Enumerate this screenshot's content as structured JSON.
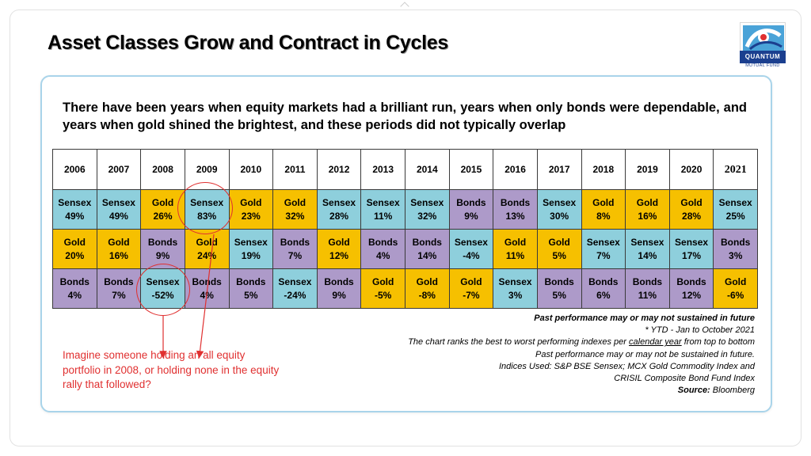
{
  "title": "Asset Classes Grow and Contract in Cycles",
  "logo": {
    "name": "QUANTUM",
    "sub": "MUTUAL FUND"
  },
  "intro": "There have been years when equity markets had a brilliant run, years when only bonds were dependable, and years when gold shined the brightest, and these periods did not typically overlap",
  "years": [
    "2006",
    "2007",
    "2008",
    "2009",
    "2010",
    "2011",
    "2012",
    "2013",
    "2014",
    "2015",
    "2016",
    "2017",
    "2018",
    "2019",
    "2020",
    "2021"
  ],
  "rows": [
    [
      {
        "name": "Sensex",
        "val": "49%"
      },
      {
        "name": "Sensex",
        "val": "49%"
      },
      {
        "name": "Gold",
        "val": "26%"
      },
      {
        "name": "Sensex",
        "val": "83%"
      },
      {
        "name": "Gold",
        "val": "23%"
      },
      {
        "name": "Gold",
        "val": "32%"
      },
      {
        "name": "Sensex",
        "val": "28%"
      },
      {
        "name": "Sensex",
        "val": "11%"
      },
      {
        "name": "Sensex",
        "val": "32%"
      },
      {
        "name": "Bonds",
        "val": "9%"
      },
      {
        "name": "Bonds",
        "val": "13%"
      },
      {
        "name": "Sensex",
        "val": "30%"
      },
      {
        "name": "Gold",
        "val": "8%"
      },
      {
        "name": "Gold",
        "val": "16%"
      },
      {
        "name": "Gold",
        "val": "28%"
      },
      {
        "name": "Sensex",
        "val": "25%"
      }
    ],
    [
      {
        "name": "Gold",
        "val": "20%"
      },
      {
        "name": "Gold",
        "val": "16%"
      },
      {
        "name": "Bonds",
        "val": "9%"
      },
      {
        "name": "Gold",
        "val": "24%"
      },
      {
        "name": "Sensex",
        "val": "19%"
      },
      {
        "name": "Bonds",
        "val": "7%"
      },
      {
        "name": "Gold",
        "val": "12%"
      },
      {
        "name": "Bonds",
        "val": "4%"
      },
      {
        "name": "Bonds",
        "val": "14%"
      },
      {
        "name": "Sensex",
        "val": "-4%"
      },
      {
        "name": "Gold",
        "val": "11%"
      },
      {
        "name": "Gold",
        "val": "5%"
      },
      {
        "name": "Sensex",
        "val": "7%"
      },
      {
        "name": "Sensex",
        "val": "14%"
      },
      {
        "name": "Sensex",
        "val": "17%"
      },
      {
        "name": "Bonds",
        "val": "3%"
      }
    ],
    [
      {
        "name": "Bonds",
        "val": "4%"
      },
      {
        "name": "Bonds",
        "val": "7%"
      },
      {
        "name": "Sensex",
        "val": "-52%"
      },
      {
        "name": "Bonds",
        "val": "4%"
      },
      {
        "name": "Bonds",
        "val": "5%"
      },
      {
        "name": "Sensex",
        "val": "-24%"
      },
      {
        "name": "Bonds",
        "val": "9%"
      },
      {
        "name": "Gold",
        "val": "-5%"
      },
      {
        "name": "Gold",
        "val": "-8%"
      },
      {
        "name": "Gold",
        "val": "-7%"
      },
      {
        "name": "Sensex",
        "val": "3%"
      },
      {
        "name": "Bonds",
        "val": "5%"
      },
      {
        "name": "Bonds",
        "val": "6%"
      },
      {
        "name": "Bonds",
        "val": "11%"
      },
      {
        "name": "Bonds",
        "val": "12%"
      },
      {
        "name": "Gold",
        "val": "-6%"
      }
    ]
  ],
  "colors": {
    "Sensex": "#8ecfdc",
    "Gold": "#f6c000",
    "Bonds": "#ad9ac9",
    "accent": "#e03030"
  },
  "notes": {
    "line1": "Past performance may or may not sustained in future",
    "line2": "* YTD - Jan to October 2021",
    "line3_pre": "The chart ranks the best to worst performing indexes per ",
    "line3_u": "calendar year",
    "line3_post": " from top to bottom",
    "line4": "Past performance may or may not be sustained in future.",
    "line5": "Indices Used: S&P BSE Sensex; MCX Gold Commodity Index and",
    "line6": "CRISIL Composite Bond Fund Index",
    "source_label": "Source:",
    "source_value": " Bloomberg"
  },
  "callout": "Imagine someone holding an all equity portfolio in 2008, or holding none in the equity rally that followed?"
}
